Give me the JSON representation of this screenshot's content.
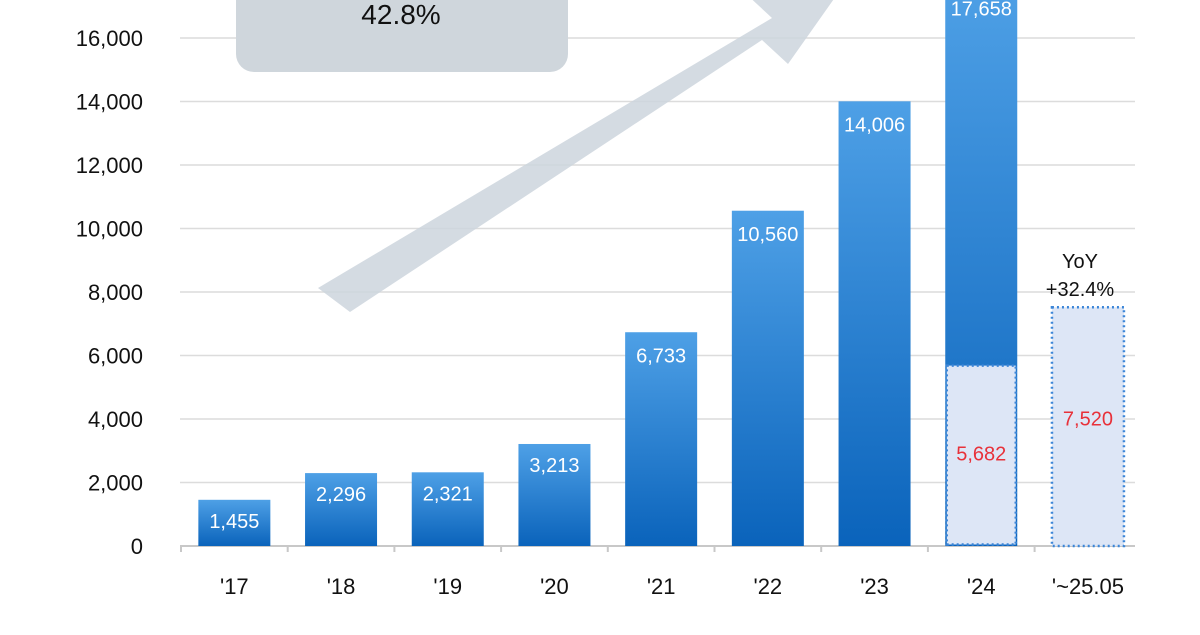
{
  "chart_data": {
    "type": "bar",
    "categories": [
      "'17",
      "'18",
      "'19",
      "'20",
      "'21",
      "'22",
      "'23",
      "'24",
      "'~25.05"
    ],
    "values": [
      1455,
      2296,
      2321,
      3213,
      6733,
      10560,
      14006,
      17658,
      7520
    ],
    "value_labels": [
      "1,455",
      "2,296",
      "2,321",
      "3,213",
      "6,733",
      "10,560",
      "14,006",
      "17,658",
      "7,520"
    ],
    "partial": {
      "category": "'24",
      "value": 5682,
      "label": "5,682"
    },
    "y_ticks": [
      0,
      2000,
      4000,
      6000,
      8000,
      10000,
      12000,
      14000,
      16000
    ],
    "y_tick_labels": [
      "0",
      "2,000",
      "4,000",
      "6,000",
      "8,000",
      "10,000",
      "12,000",
      "14,000",
      "16,000"
    ],
    "ylim": [
      0,
      18000
    ],
    "grid": true,
    "annotations": {
      "cagr": "42.8%",
      "yoy_line1": "YoY",
      "yoy_line2": "+32.4%"
    },
    "colors": {
      "bar_top": "#4ea0e6",
      "bar_bottom": "#0a63bb",
      "dotted_fill": "#dde6f6",
      "dotted_border": "#3c86d8",
      "red_label": "#e8313a",
      "grid": "#dcdcdc",
      "arrow": "#cdd5dd",
      "cagr_box": "#cfd6dc"
    }
  }
}
